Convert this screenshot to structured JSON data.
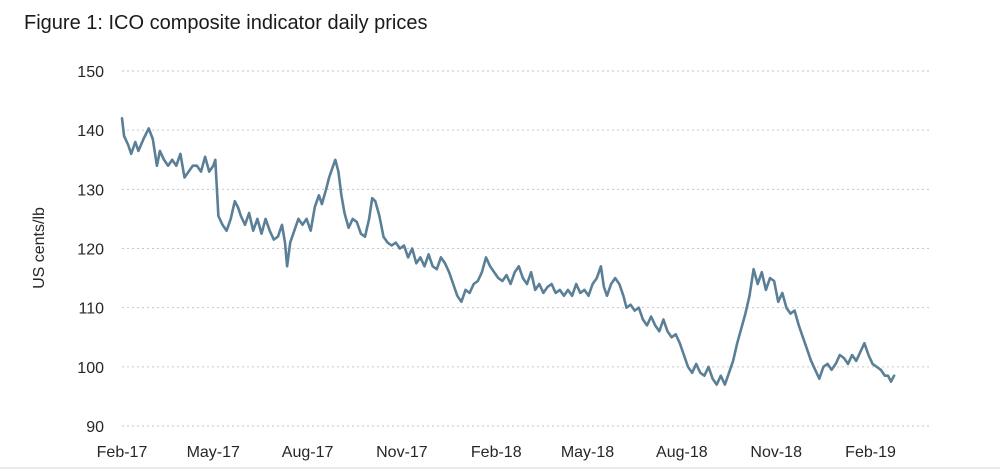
{
  "chart_data": {
    "type": "line",
    "title": "Figure 1: ICO composite indicator daily prices",
    "xlabel": "",
    "ylabel": "US cents/lb",
    "ylim": [
      90,
      150
    ],
    "yticks": [
      90,
      100,
      110,
      120,
      130,
      140,
      150
    ],
    "xlim": [
      "2017-02-01",
      "2019-03-31"
    ],
    "xticks": [
      {
        "date": "2017-02-01",
        "label": "Feb-17"
      },
      {
        "date": "2017-05-01",
        "label": "May-17"
      },
      {
        "date": "2017-08-01",
        "label": "Aug-17"
      },
      {
        "date": "2017-11-01",
        "label": "Nov-17"
      },
      {
        "date": "2018-02-01",
        "label": "Feb-18"
      },
      {
        "date": "2018-05-01",
        "label": "May-18"
      },
      {
        "date": "2018-08-01",
        "label": "Aug-18"
      },
      {
        "date": "2018-11-01",
        "label": "Nov-18"
      },
      {
        "date": "2019-02-01",
        "label": "Feb-19"
      }
    ],
    "grid": "horizontal-dotted",
    "legend": "none",
    "line_color": "#5a7f96",
    "series": [
      {
        "values": [
          [
            "2017-02-01",
            142
          ],
          [
            "2017-02-03",
            139
          ],
          [
            "2017-02-07",
            137.5
          ],
          [
            "2017-02-10",
            136
          ],
          [
            "2017-02-14",
            138
          ],
          [
            "2017-02-17",
            136.5
          ],
          [
            "2017-02-22",
            138.5
          ],
          [
            "2017-02-27",
            140.3
          ],
          [
            "2017-03-03",
            138.5
          ],
          [
            "2017-03-07",
            134
          ],
          [
            "2017-03-10",
            136.5
          ],
          [
            "2017-03-14",
            135
          ],
          [
            "2017-03-18",
            134
          ],
          [
            "2017-03-22",
            135
          ],
          [
            "2017-03-26",
            134
          ],
          [
            "2017-03-30",
            136
          ],
          [
            "2017-04-03",
            132
          ],
          [
            "2017-04-07",
            133
          ],
          [
            "2017-04-11",
            134
          ],
          [
            "2017-04-15",
            134
          ],
          [
            "2017-04-19",
            133
          ],
          [
            "2017-04-23",
            135.5
          ],
          [
            "2017-04-27",
            133
          ],
          [
            "2017-05-01",
            134
          ],
          [
            "2017-05-03",
            135
          ],
          [
            "2017-05-06",
            125.5
          ],
          [
            "2017-05-10",
            124
          ],
          [
            "2017-05-14",
            123
          ],
          [
            "2017-05-18",
            125
          ],
          [
            "2017-05-22",
            128
          ],
          [
            "2017-05-25",
            127
          ],
          [
            "2017-05-28",
            125.5
          ],
          [
            "2017-06-01",
            124
          ],
          [
            "2017-06-05",
            126
          ],
          [
            "2017-06-09",
            123
          ],
          [
            "2017-06-13",
            125
          ],
          [
            "2017-06-17",
            122.5
          ],
          [
            "2017-06-21",
            125
          ],
          [
            "2017-06-25",
            123
          ],
          [
            "2017-06-29",
            121.5
          ],
          [
            "2017-07-03",
            122
          ],
          [
            "2017-07-07",
            124
          ],
          [
            "2017-07-10",
            121
          ],
          [
            "2017-07-12",
            117
          ],
          [
            "2017-07-15",
            121
          ],
          [
            "2017-07-19",
            123
          ],
          [
            "2017-07-23",
            125
          ],
          [
            "2017-07-27",
            124
          ],
          [
            "2017-07-31",
            125
          ],
          [
            "2017-08-04",
            123
          ],
          [
            "2017-08-08",
            127
          ],
          [
            "2017-08-12",
            129
          ],
          [
            "2017-08-15",
            127.5
          ],
          [
            "2017-08-19",
            130
          ],
          [
            "2017-08-22",
            132
          ],
          [
            "2017-08-25",
            133.5
          ],
          [
            "2017-08-28",
            135
          ],
          [
            "2017-08-31",
            133
          ],
          [
            "2017-09-03",
            129
          ],
          [
            "2017-09-06",
            126
          ],
          [
            "2017-09-10",
            123.5
          ],
          [
            "2017-09-14",
            125
          ],
          [
            "2017-09-18",
            124.5
          ],
          [
            "2017-09-22",
            122.5
          ],
          [
            "2017-09-26",
            122
          ],
          [
            "2017-09-30",
            125
          ],
          [
            "2017-10-03",
            128.5
          ],
          [
            "2017-10-06",
            128
          ],
          [
            "2017-10-10",
            125.5
          ],
          [
            "2017-10-14",
            122
          ],
          [
            "2017-10-18",
            121
          ],
          [
            "2017-10-22",
            120.5
          ],
          [
            "2017-10-26",
            121
          ],
          [
            "2017-10-30",
            120
          ],
          [
            "2017-11-03",
            120.5
          ],
          [
            "2017-11-07",
            118.5
          ],
          [
            "2017-11-11",
            120
          ],
          [
            "2017-11-15",
            117.5
          ],
          [
            "2017-11-19",
            118.5
          ],
          [
            "2017-11-23",
            117
          ],
          [
            "2017-11-27",
            119
          ],
          [
            "2017-12-01",
            117
          ],
          [
            "2017-12-05",
            116.5
          ],
          [
            "2017-12-09",
            118.5
          ],
          [
            "2017-12-13",
            117.5
          ],
          [
            "2017-12-17",
            116
          ],
          [
            "2017-12-21",
            114
          ],
          [
            "2017-12-25",
            112
          ],
          [
            "2017-12-29",
            111
          ],
          [
            "2018-01-02",
            113
          ],
          [
            "2018-01-06",
            112.5
          ],
          [
            "2018-01-10",
            114
          ],
          [
            "2018-01-14",
            114.5
          ],
          [
            "2018-01-18",
            116
          ],
          [
            "2018-01-22",
            118.5
          ],
          [
            "2018-01-26",
            117
          ],
          [
            "2018-01-30",
            116
          ],
          [
            "2018-02-03",
            115
          ],
          [
            "2018-02-07",
            114.5
          ],
          [
            "2018-02-11",
            115.5
          ],
          [
            "2018-02-15",
            114
          ],
          [
            "2018-02-19",
            116
          ],
          [
            "2018-02-23",
            117
          ],
          [
            "2018-02-27",
            115
          ],
          [
            "2018-03-03",
            114
          ],
          [
            "2018-03-07",
            116
          ],
          [
            "2018-03-11",
            113
          ],
          [
            "2018-03-15",
            114
          ],
          [
            "2018-03-19",
            112.5
          ],
          [
            "2018-03-23",
            113.5
          ],
          [
            "2018-03-27",
            114
          ],
          [
            "2018-03-31",
            112.5
          ],
          [
            "2018-04-04",
            113
          ],
          [
            "2018-04-08",
            112
          ],
          [
            "2018-04-12",
            113
          ],
          [
            "2018-04-16",
            112
          ],
          [
            "2018-04-20",
            114
          ],
          [
            "2018-04-24",
            112.5
          ],
          [
            "2018-04-28",
            113
          ],
          [
            "2018-05-02",
            112
          ],
          [
            "2018-05-06",
            114
          ],
          [
            "2018-05-10",
            115
          ],
          [
            "2018-05-14",
            117
          ],
          [
            "2018-05-17",
            113.5
          ],
          [
            "2018-05-20",
            112
          ],
          [
            "2018-05-24",
            114
          ],
          [
            "2018-05-28",
            115
          ],
          [
            "2018-06-01",
            114
          ],
          [
            "2018-06-05",
            112
          ],
          [
            "2018-06-08",
            110
          ],
          [
            "2018-06-12",
            110.5
          ],
          [
            "2018-06-16",
            109.5
          ],
          [
            "2018-06-20",
            110
          ],
          [
            "2018-06-24",
            108
          ],
          [
            "2018-06-28",
            107
          ],
          [
            "2018-07-02",
            108.5
          ],
          [
            "2018-07-06",
            107
          ],
          [
            "2018-07-10",
            106
          ],
          [
            "2018-07-14",
            108
          ],
          [
            "2018-07-18",
            106
          ],
          [
            "2018-07-22",
            105
          ],
          [
            "2018-07-26",
            105.5
          ],
          [
            "2018-07-30",
            104
          ],
          [
            "2018-08-03",
            102
          ],
          [
            "2018-08-07",
            100
          ],
          [
            "2018-08-11",
            99
          ],
          [
            "2018-08-15",
            100.5
          ],
          [
            "2018-08-19",
            99
          ],
          [
            "2018-08-23",
            98.5
          ],
          [
            "2018-08-27",
            100
          ],
          [
            "2018-08-31",
            98
          ],
          [
            "2018-09-04",
            97
          ],
          [
            "2018-09-08",
            98.5
          ],
          [
            "2018-09-12",
            97
          ],
          [
            "2018-09-16",
            99
          ],
          [
            "2018-09-20",
            101
          ],
          [
            "2018-09-24",
            104
          ],
          [
            "2018-09-28",
            106.5
          ],
          [
            "2018-10-02",
            109
          ],
          [
            "2018-10-06",
            112
          ],
          [
            "2018-10-10",
            116.5
          ],
          [
            "2018-10-14",
            114
          ],
          [
            "2018-10-18",
            116
          ],
          [
            "2018-10-22",
            113
          ],
          [
            "2018-10-26",
            115
          ],
          [
            "2018-10-30",
            114.5
          ],
          [
            "2018-11-03",
            111
          ],
          [
            "2018-11-07",
            112.5
          ],
          [
            "2018-11-11",
            110
          ],
          [
            "2018-11-15",
            109
          ],
          [
            "2018-11-19",
            109.5
          ],
          [
            "2018-11-23",
            107
          ],
          [
            "2018-11-27",
            105
          ],
          [
            "2018-12-01",
            103
          ],
          [
            "2018-12-05",
            101
          ],
          [
            "2018-12-09",
            99.5
          ],
          [
            "2018-12-13",
            98
          ],
          [
            "2018-12-17",
            100
          ],
          [
            "2018-12-21",
            100.5
          ],
          [
            "2018-12-25",
            99.5
          ],
          [
            "2018-12-29",
            100.5
          ],
          [
            "2019-01-02",
            102
          ],
          [
            "2019-01-06",
            101.5
          ],
          [
            "2019-01-10",
            100.5
          ],
          [
            "2019-01-14",
            102
          ],
          [
            "2019-01-18",
            101
          ],
          [
            "2019-01-22",
            102.5
          ],
          [
            "2019-01-26",
            104
          ],
          [
            "2019-01-30",
            102
          ],
          [
            "2019-02-03",
            100.5
          ],
          [
            "2019-02-07",
            100
          ],
          [
            "2019-02-11",
            99.5
          ],
          [
            "2019-02-15",
            98.5
          ],
          [
            "2019-02-18",
            98.5
          ],
          [
            "2019-02-21",
            97.5
          ],
          [
            "2019-02-24",
            98.5
          ]
        ]
      }
    ]
  }
}
